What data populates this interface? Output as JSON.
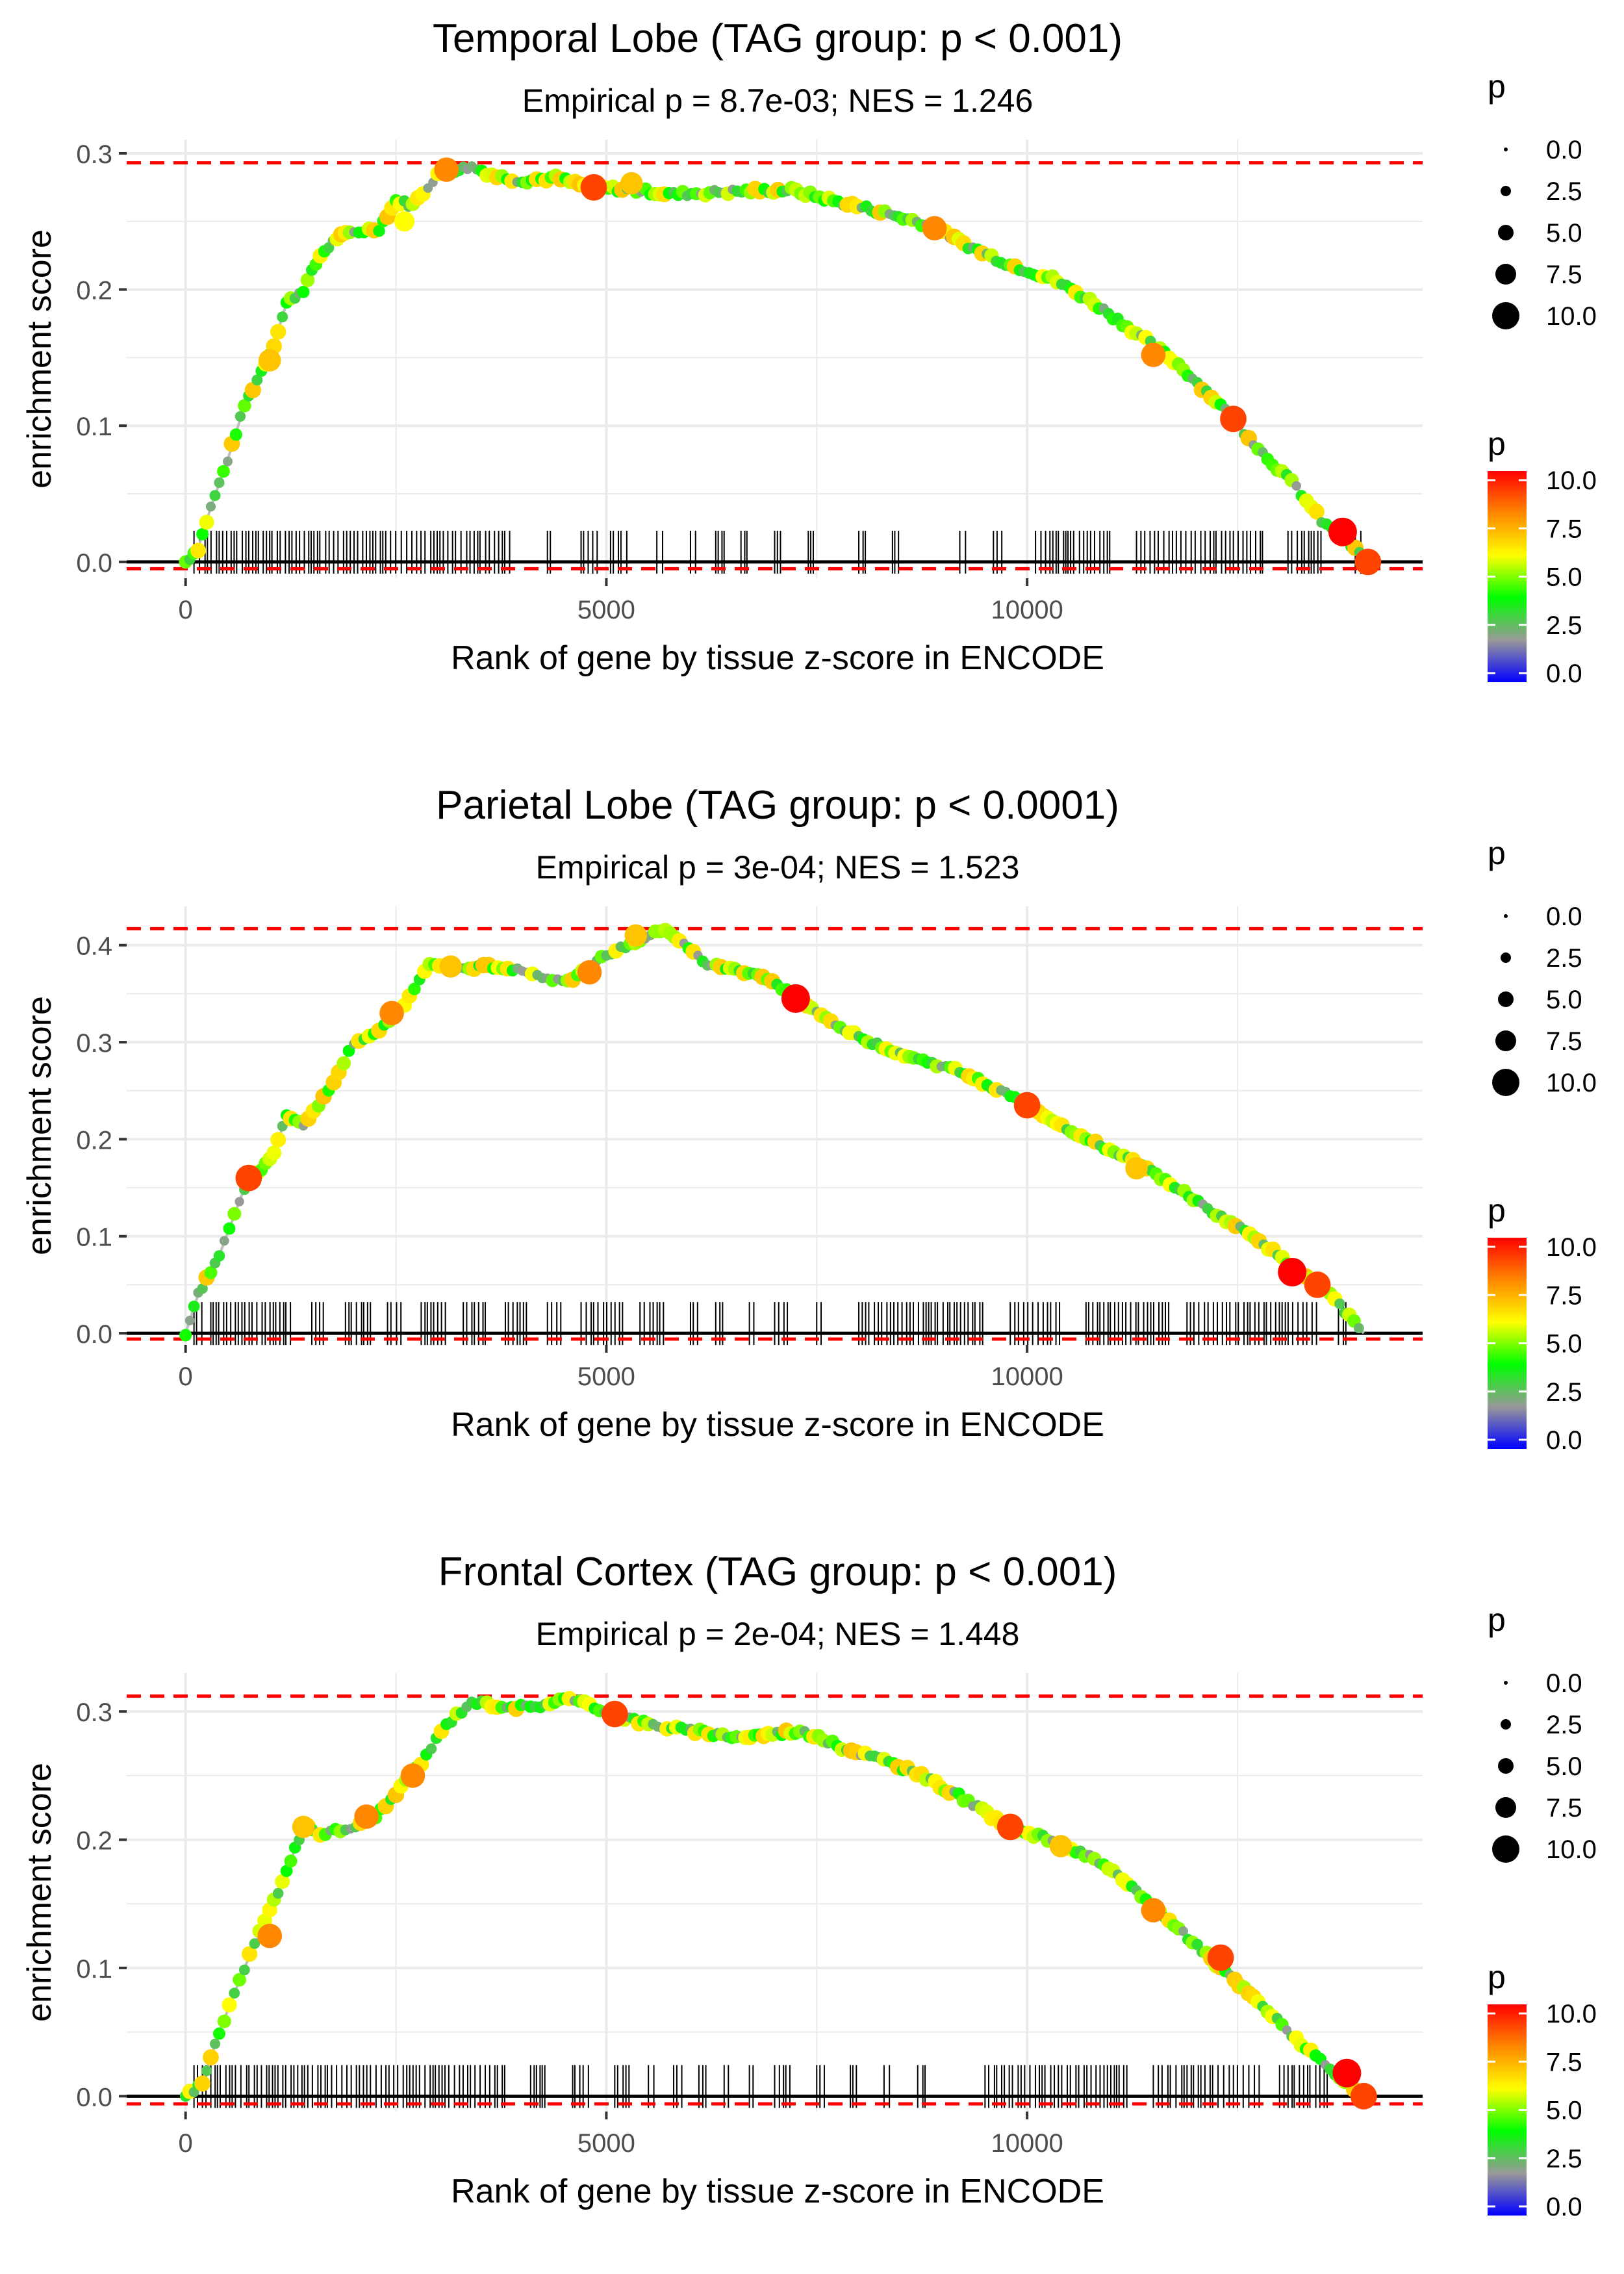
{
  "colors": {
    "panel_bg": "#ffffff",
    "grid": "#ebebeb",
    "zero_line": "#000000",
    "max_line": "#ff0000",
    "curve": "#bebebe",
    "rug": "#000000",
    "text": "#000000",
    "tick_text": "#4d4d4d",
    "scale": [
      "#0000ff",
      "#999999",
      "#00ff00",
      "#ffff00",
      "#ff8800",
      "#ff0000"
    ]
  },
  "legend": {
    "size_title": "p",
    "size_labels": [
      "0.0",
      "2.5",
      "5.0",
      "7.5",
      "10.0"
    ],
    "color_title": "p",
    "color_labels": [
      "10.0",
      "7.5",
      "5.0",
      "2.5",
      "0.0"
    ]
  },
  "chart_data": [
    {
      "type": "line",
      "title": "Temporal Lobe (TAG group: p < 0.001)",
      "subtitle": "Empirical p = 8.7e-03; NES = 1.246",
      "xlabel": "Rank of gene by tissue z-score in ENCODE",
      "ylabel": "enrichment score",
      "xlim": [
        -700,
        14700
      ],
      "ylim": [
        -0.012,
        0.31
      ],
      "xticks": [
        0,
        5000,
        10000
      ],
      "xtick_labels": [
        "0",
        "5000",
        "10000"
      ],
      "yticks": [
        0.0,
        0.1,
        0.2,
        0.3
      ],
      "ytick_labels": [
        "0.0",
        "0.1",
        "0.2",
        "0.3"
      ],
      "max_es": 0.293,
      "min_es": -0.005,
      "curve": [
        [
          0,
          0
        ],
        [
          150,
          0.01
        ],
        [
          300,
          0.04
        ],
        [
          500,
          0.075
        ],
        [
          700,
          0.115
        ],
        [
          900,
          0.14
        ],
        [
          1050,
          0.16
        ],
        [
          1200,
          0.19
        ],
        [
          1400,
          0.2
        ],
        [
          1600,
          0.225
        ],
        [
          1800,
          0.238
        ],
        [
          2000,
          0.242
        ],
        [
          2300,
          0.245
        ],
        [
          2500,
          0.265
        ],
        [
          2700,
          0.262
        ],
        [
          3000,
          0.285
        ],
        [
          3200,
          0.288
        ],
        [
          3400,
          0.29
        ],
        [
          3700,
          0.283
        ],
        [
          4000,
          0.28
        ],
        [
          4400,
          0.282
        ],
        [
          4800,
          0.275
        ],
        [
          5300,
          0.273
        ],
        [
          5800,
          0.27
        ],
        [
          6500,
          0.272
        ],
        [
          7200,
          0.273
        ],
        [
          7700,
          0.265
        ],
        [
          8200,
          0.258
        ],
        [
          8800,
          0.248
        ],
        [
          9300,
          0.232
        ],
        [
          9800,
          0.218
        ],
        [
          10300,
          0.208
        ],
        [
          10800,
          0.19
        ],
        [
          11300,
          0.168
        ],
        [
          11800,
          0.145
        ],
        [
          12300,
          0.115
        ],
        [
          12800,
          0.08
        ],
        [
          13200,
          0.055
        ],
        [
          13500,
          0.03
        ],
        [
          13800,
          0.015
        ],
        [
          14050,
          0.0
        ]
      ],
      "highlights": [
        [
          3100,
          0.288,
          8
        ],
        [
          4850,
          0.275,
          9
        ],
        [
          5300,
          0.278,
          7
        ],
        [
          8900,
          0.245,
          8
        ],
        [
          11500,
          0.152,
          8
        ],
        [
          12450,
          0.105,
          9
        ],
        [
          13750,
          0.022,
          10
        ],
        [
          14050,
          0.0,
          9
        ],
        [
          1000,
          0.148,
          7
        ],
        [
          2600,
          0.25,
          6
        ]
      ],
      "rug_segments": [
        [
          100,
          3900
        ],
        [
          4300,
          4400
        ],
        [
          4700,
          4900
        ],
        [
          5050,
          5250
        ],
        [
          5600,
          5700
        ],
        [
          6000,
          6100
        ],
        [
          6300,
          6400
        ],
        [
          6600,
          6700
        ],
        [
          7000,
          7100
        ],
        [
          7400,
          7500
        ],
        [
          8000,
          8100
        ],
        [
          8400,
          8500
        ],
        [
          9200,
          9300
        ],
        [
          9600,
          9700
        ],
        [
          10100,
          11000
        ],
        [
          11300,
          12800
        ],
        [
          13100,
          13500
        ],
        [
          13900,
          14000
        ]
      ]
    },
    {
      "type": "line",
      "title": "Parietal Lobe (TAG group: p < 0.0001)",
      "subtitle": "Empirical p = 3e-04; NES = 1.523",
      "xlabel": "Rank of gene by tissue z-score in ENCODE",
      "ylabel": "enrichment score",
      "xlim": [
        -700,
        14700
      ],
      "ylim": [
        -0.012,
        0.44
      ],
      "xticks": [
        0,
        5000,
        10000
      ],
      "xtick_labels": [
        "0",
        "5000",
        "10000"
      ],
      "yticks": [
        0.0,
        0.1,
        0.2,
        0.3,
        0.4
      ],
      "ytick_labels": [
        "0.0",
        "0.1",
        "0.2",
        "0.3",
        "0.4"
      ],
      "max_es": 0.417,
      "min_es": -0.006,
      "curve": [
        [
          0,
          0
        ],
        [
          150,
          0.04
        ],
        [
          400,
          0.08
        ],
        [
          700,
          0.15
        ],
        [
          900,
          0.17
        ],
        [
          1050,
          0.185
        ],
        [
          1200,
          0.225
        ],
        [
          1400,
          0.215
        ],
        [
          1700,
          0.25
        ],
        [
          2000,
          0.3
        ],
        [
          2300,
          0.31
        ],
        [
          2600,
          0.34
        ],
        [
          2900,
          0.38
        ],
        [
          3200,
          0.375
        ],
        [
          3600,
          0.378
        ],
        [
          4000,
          0.375
        ],
        [
          4300,
          0.365
        ],
        [
          4600,
          0.365
        ],
        [
          5000,
          0.39
        ],
        [
          5400,
          0.405
        ],
        [
          5700,
          0.417
        ],
        [
          6200,
          0.38
        ],
        [
          6800,
          0.37
        ],
        [
          7200,
          0.35
        ],
        [
          7500,
          0.33
        ],
        [
          8000,
          0.305
        ],
        [
          8600,
          0.285
        ],
        [
          9200,
          0.27
        ],
        [
          9800,
          0.245
        ],
        [
          10300,
          0.22
        ],
        [
          10700,
          0.2
        ],
        [
          11200,
          0.18
        ],
        [
          11700,
          0.155
        ],
        [
          12200,
          0.125
        ],
        [
          12700,
          0.1
        ],
        [
          13200,
          0.065
        ],
        [
          13600,
          0.04
        ],
        [
          14000,
          0.0
        ]
      ],
      "highlights": [
        [
          750,
          0.16,
          9
        ],
        [
          2450,
          0.33,
          8
        ],
        [
          3150,
          0.378,
          7
        ],
        [
          4800,
          0.372,
          8
        ],
        [
          5350,
          0.41,
          7
        ],
        [
          7250,
          0.345,
          10
        ],
        [
          10000,
          0.235,
          9
        ],
        [
          13150,
          0.063,
          10
        ],
        [
          13450,
          0.05,
          9
        ],
        [
          11300,
          0.17,
          7
        ]
      ],
      "rug_segments": [
        [
          100,
          200
        ],
        [
          300,
          1300
        ],
        [
          1500,
          1700
        ],
        [
          1900,
          2200
        ],
        [
          2400,
          2600
        ],
        [
          2800,
          3100
        ],
        [
          3300,
          3600
        ],
        [
          3800,
          4100
        ],
        [
          4300,
          4500
        ],
        [
          4700,
          5200
        ],
        [
          5400,
          5700
        ],
        [
          6000,
          6100
        ],
        [
          6300,
          6400
        ],
        [
          6700,
          6800
        ],
        [
          7000,
          7200
        ],
        [
          7500,
          7600
        ],
        [
          8000,
          9500
        ],
        [
          9800,
          10400
        ],
        [
          10700,
          11700
        ],
        [
          11900,
          13500
        ],
        [
          13700,
          13800
        ]
      ]
    },
    {
      "type": "line",
      "title": "Frontal Cortex (TAG group: p < 0.001)",
      "subtitle": "Empirical p = 2e-04; NES = 1.448",
      "xlabel": "Rank of gene by tissue z-score in ENCODE",
      "ylabel": "enrichment score",
      "xlim": [
        -700,
        14700
      ],
      "ylim": [
        -0.012,
        0.33
      ],
      "xticks": [
        0,
        5000,
        10000
      ],
      "xtick_labels": [
        "0",
        "5000",
        "10000"
      ],
      "yticks": [
        0.0,
        0.1,
        0.2,
        0.3
      ],
      "ytick_labels": [
        "0.0",
        "0.1",
        "0.2",
        "0.3"
      ],
      "max_es": 0.312,
      "min_es": -0.006,
      "curve": [
        [
          0,
          0
        ],
        [
          200,
          0.01
        ],
        [
          400,
          0.05
        ],
        [
          700,
          0.1
        ],
        [
          1000,
          0.145
        ],
        [
          1200,
          0.175
        ],
        [
          1400,
          0.21
        ],
        [
          1600,
          0.205
        ],
        [
          1900,
          0.208
        ],
        [
          2200,
          0.215
        ],
        [
          2500,
          0.235
        ],
        [
          2800,
          0.26
        ],
        [
          3100,
          0.29
        ],
        [
          3400,
          0.308
        ],
        [
          3700,
          0.305
        ],
        [
          4100,
          0.303
        ],
        [
          4500,
          0.31
        ],
        [
          4800,
          0.305
        ],
        [
          5100,
          0.298
        ],
        [
          5500,
          0.29
        ],
        [
          6000,
          0.285
        ],
        [
          6600,
          0.28
        ],
        [
          7300,
          0.285
        ],
        [
          7800,
          0.272
        ],
        [
          8300,
          0.262
        ],
        [
          8800,
          0.248
        ],
        [
          9300,
          0.23
        ],
        [
          9800,
          0.208
        ],
        [
          10300,
          0.2
        ],
        [
          10800,
          0.185
        ],
        [
          11300,
          0.16
        ],
        [
          11800,
          0.13
        ],
        [
          12300,
          0.1
        ],
        [
          12800,
          0.07
        ],
        [
          13200,
          0.045
        ],
        [
          13600,
          0.02
        ],
        [
          14000,
          0.0
        ]
      ],
      "highlights": [
        [
          1000,
          0.125,
          8
        ],
        [
          1400,
          0.21,
          7
        ],
        [
          2150,
          0.218,
          8
        ],
        [
          2700,
          0.25,
          8
        ],
        [
          5100,
          0.298,
          9
        ],
        [
          9800,
          0.21,
          9
        ],
        [
          10400,
          0.195,
          7
        ],
        [
          11500,
          0.145,
          8
        ],
        [
          12300,
          0.108,
          9
        ],
        [
          13800,
          0.018,
          10
        ],
        [
          14000,
          0.0,
          9
        ]
      ],
      "rug_segments": [
        [
          100,
          3800
        ],
        [
          4100,
          4300
        ],
        [
          4600,
          4800
        ],
        [
          5100,
          5300
        ],
        [
          5500,
          5600
        ],
        [
          5800,
          5900
        ],
        [
          6100,
          6200
        ],
        [
          6400,
          6500
        ],
        [
          6700,
          6800
        ],
        [
          7000,
          7200
        ],
        [
          7500,
          7600
        ],
        [
          7900,
          8000
        ],
        [
          8300,
          8400
        ],
        [
          8700,
          8800
        ],
        [
          9500,
          11200
        ],
        [
          11500,
          12800
        ],
        [
          13000,
          13600
        ]
      ]
    }
  ]
}
